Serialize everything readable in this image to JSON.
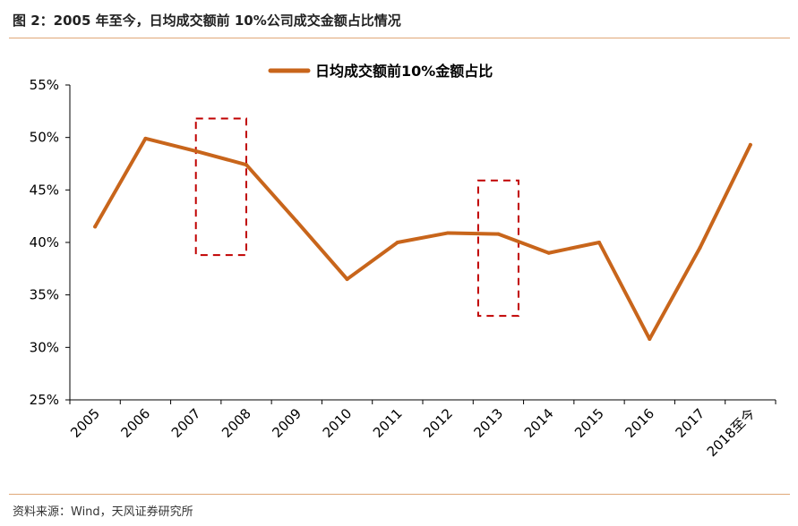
{
  "figure": {
    "title": "图 2：2005 年至今，日均成交额前 10%公司成交金额占比情况",
    "source": "资料来源：Wind，天风证券研究所"
  },
  "colors": {
    "line": "#c8651b",
    "highlight_box": "#c00000",
    "rule": "#e0a878"
  },
  "chart_data": {
    "type": "line",
    "categories": [
      "2005",
      "2006",
      "2007",
      "2008",
      "2009",
      "2010",
      "2011",
      "2012",
      "2013",
      "2014",
      "2015",
      "2016",
      "2017",
      "2018至今"
    ],
    "series": [
      {
        "name": "日均成交额前10%金额占比",
        "values": [
          41.5,
          49.9,
          48.7,
          47.4,
          42.0,
          36.5,
          40.0,
          40.9,
          40.8,
          39.0,
          40.0,
          30.8,
          39.5,
          49.3
        ]
      }
    ],
    "yticks": [
      "55%",
      "50%",
      "45%",
      "40%",
      "35%",
      "30%",
      "25%"
    ],
    "ylim": [
      25,
      55
    ],
    "legend_position": "top-center",
    "grid": false,
    "highlight_boxes": [
      {
        "x_range": [
          "2007",
          "2008"
        ],
        "y_range": [
          38.8,
          51.8
        ]
      },
      {
        "x_range": [
          "2013",
          "2013"
        ],
        "y_range": [
          33.0,
          45.9
        ]
      }
    ]
  }
}
